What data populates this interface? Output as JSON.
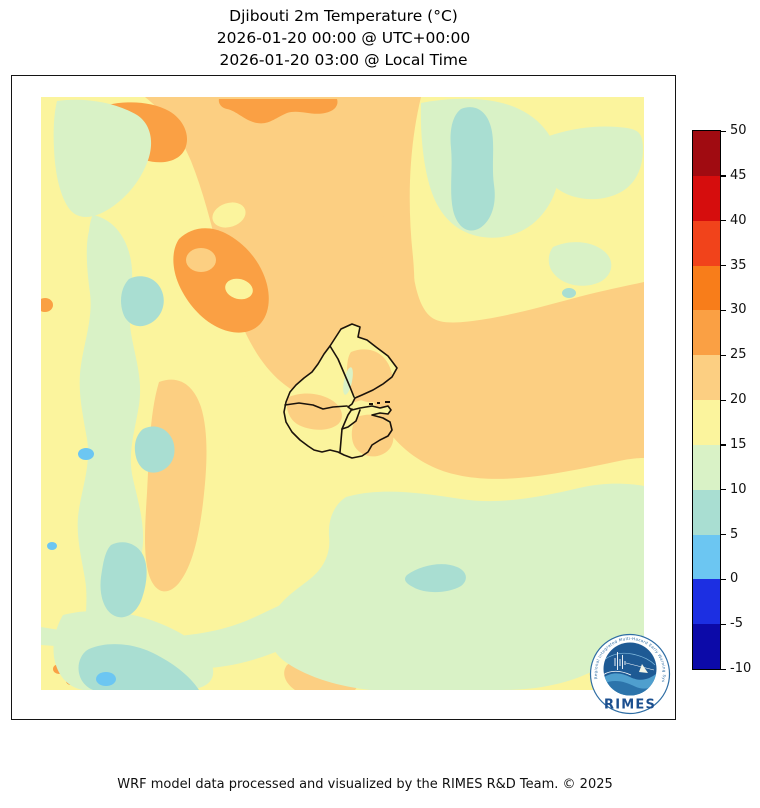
{
  "title": {
    "line1": "Djibouti 2m Temperature (°C)",
    "line2": "2026-01-20 00:00 @ UTC+00:00",
    "line3": "2026-01-20 03:00 @ Local Time"
  },
  "map": {
    "description": "Filled temperature contours over the Djibouti region with national and regional administrative boundaries",
    "palette": {
      "yellow_15_20": "#fbf49d",
      "peach_20_25": "#fccf82",
      "orange_25_30": "#faa044",
      "green_10_15": "#d9f2c6",
      "teal_5_10": "#a9ded2",
      "blue_0_5": "#6cc6f2",
      "boundary_line": "#1b130b"
    }
  },
  "colorbar": {
    "unit": "°C",
    "tick_labels": [
      "50",
      "45",
      "40",
      "35",
      "30",
      "25",
      "20",
      "15",
      "10",
      "5",
      "0",
      "-5",
      "-10"
    ],
    "bands": [
      {
        "range": "45 to 50",
        "color": "#a00b11"
      },
      {
        "range": "40 to 45",
        "color": "#d60d0d"
      },
      {
        "range": "35 to 40",
        "color": "#f1431b"
      },
      {
        "range": "30 to 35",
        "color": "#f87d1a"
      },
      {
        "range": "25 to 30",
        "color": "#faa044"
      },
      {
        "range": "20 to 25",
        "color": "#fccf82"
      },
      {
        "range": "15 to 20",
        "color": "#fbf49d"
      },
      {
        "range": "10 to 15",
        "color": "#d9f2c6"
      },
      {
        "range": "5 to 10",
        "color": "#a9ded2"
      },
      {
        "range": "0 to 5",
        "color": "#6cc6f2"
      },
      {
        "range": "-5 to 0",
        "color": "#1c2fe2"
      },
      {
        "range": "-10 to -5",
        "color": "#0c0aa8"
      }
    ]
  },
  "logo": {
    "name": "RIMES",
    "ring_text": "Regional Integrated Multi-Hazard Early Warning System",
    "brand_blue": "#2e6da4",
    "emblem_navy": "#1e5a94"
  },
  "footer": {
    "credit": "WRF model data processed and visualized by the RIMES R&D Team. © 2025"
  }
}
